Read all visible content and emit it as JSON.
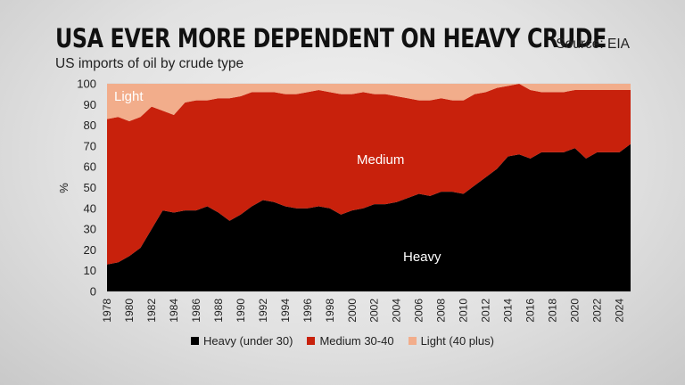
{
  "header": {
    "title": "USA EVER MORE DEPENDENT ON HEAVY CRUDE",
    "subtitle": "US imports of oil by crude type",
    "source": "Source: EIA"
  },
  "colors": {
    "heavy": "#000000",
    "medium": "#c8210c",
    "light": "#f2ad8b"
  },
  "chart_data": {
    "type": "area",
    "stacked": true,
    "title": "USA EVER MORE DEPENDENT ON HEAVY CRUDE",
    "subtitle": "US imports of oil by crude type",
    "xlabel": "",
    "ylabel": "%",
    "ylim": [
      0,
      100
    ],
    "yticks": [
      0,
      10,
      20,
      30,
      40,
      50,
      60,
      70,
      80,
      90,
      100
    ],
    "xtick_labels": [
      "1978",
      "1980",
      "1982",
      "1984",
      "1986",
      "1988",
      "1990",
      "1992",
      "1994",
      "1996",
      "1998",
      "2000",
      "2002",
      "2004",
      "2006",
      "2008",
      "2010",
      "2012",
      "2014",
      "2016",
      "2018",
      "2020",
      "2022",
      "2024"
    ],
    "x": [
      1978,
      1979,
      1980,
      1981,
      1982,
      1983,
      1984,
      1985,
      1986,
      1987,
      1988,
      1989,
      1990,
      1991,
      1992,
      1993,
      1994,
      1995,
      1996,
      1997,
      1998,
      1999,
      2000,
      2001,
      2002,
      2003,
      2004,
      2005,
      2006,
      2007,
      2008,
      2009,
      2010,
      2011,
      2012,
      2013,
      2014,
      2015,
      2016,
      2017,
      2018,
      2019,
      2020,
      2021,
      2022,
      2023,
      2024,
      2025
    ],
    "series": [
      {
        "name": "Heavy (under 30)",
        "label": "Heavy",
        "values": [
          13,
          14,
          17,
          21,
          30,
          39,
          38,
          39,
          39,
          41,
          38,
          34,
          37,
          41,
          44,
          43,
          41,
          40,
          40,
          41,
          40,
          37,
          39,
          40,
          42,
          42,
          43,
          45,
          47,
          46,
          48,
          48,
          47,
          51,
          55,
          59,
          65,
          66,
          64,
          67,
          67,
          67,
          69,
          64,
          67,
          67,
          67,
          71
        ]
      },
      {
        "name": "Medium 30-40",
        "label": "Medium",
        "values": [
          70,
          70,
          65,
          63,
          59,
          48,
          47,
          52,
          53,
          51,
          55,
          59,
          57,
          55,
          52,
          53,
          54,
          55,
          56,
          56,
          56,
          58,
          56,
          56,
          53,
          53,
          51,
          48,
          45,
          46,
          45,
          44,
          45,
          44,
          41,
          39,
          34,
          34,
          33,
          29,
          29,
          29,
          28,
          33,
          30,
          30,
          30,
          26
        ]
      },
      {
        "name": "Light (40 plus)",
        "label": "Light",
        "values": [
          17,
          16,
          18,
          16,
          11,
          13,
          15,
          9,
          8,
          8,
          7,
          7,
          6,
          4,
          4,
          4,
          5,
          5,
          4,
          3,
          4,
          5,
          5,
          4,
          5,
          5,
          6,
          7,
          8,
          8,
          7,
          8,
          8,
          5,
          4,
          2,
          1,
          0,
          3,
          4,
          4,
          4,
          3,
          3,
          3,
          3,
          3,
          3
        ]
      }
    ]
  }
}
